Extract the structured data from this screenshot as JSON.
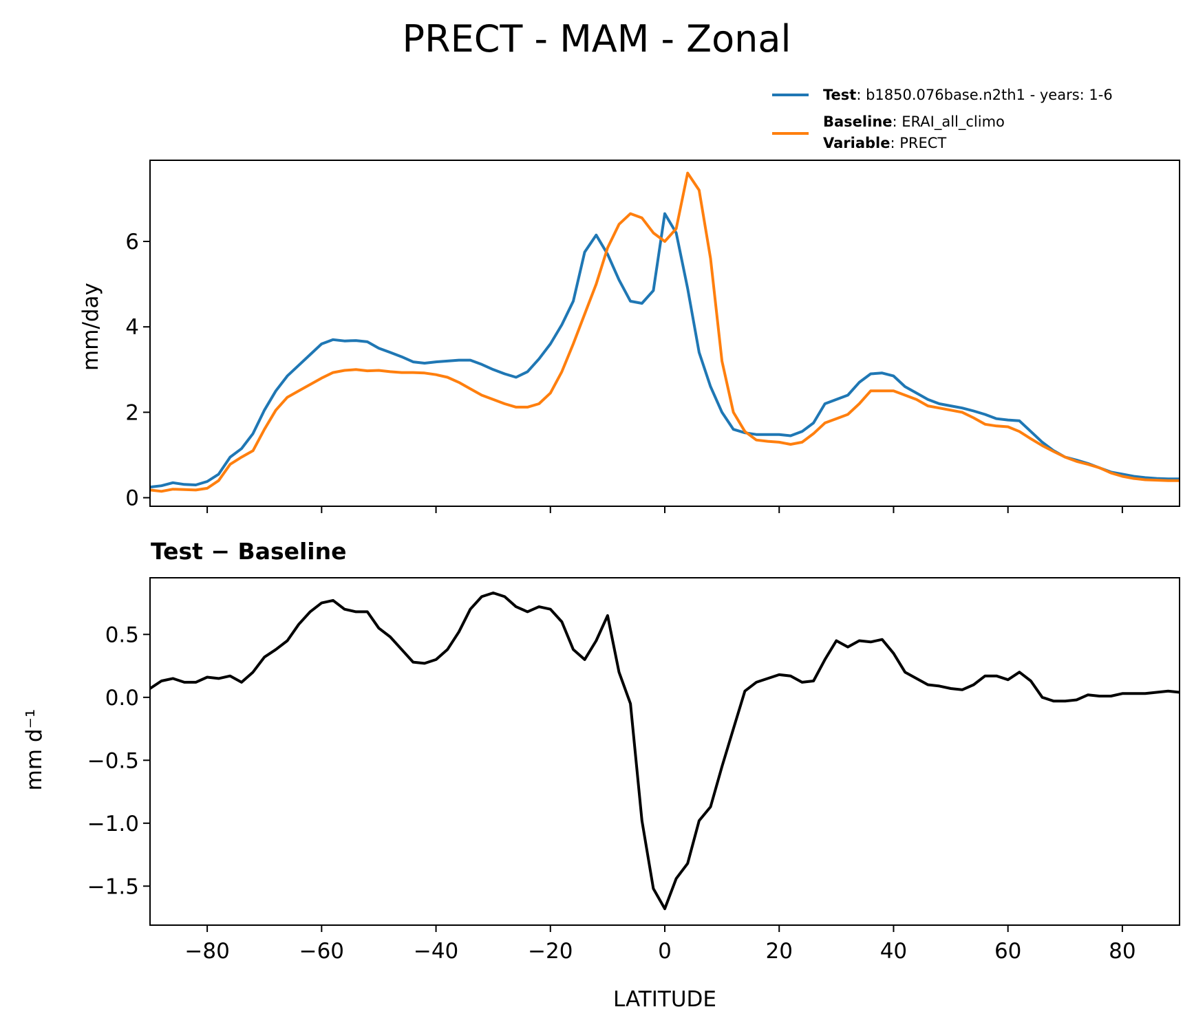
{
  "figure": {
    "title": "PRECT - MAM - Zonal"
  },
  "colors": {
    "test": "#1f77b4",
    "baseline": "#ff7f0e",
    "diff": "#000000"
  },
  "legend": {
    "test_key": "Test",
    "test_value": ": b1850.076base.n2th1 - years: 1-6",
    "baseline_key": "Baseline",
    "baseline_value": ": ERAI_all_climo",
    "variable_key": "Variable",
    "variable_value": ": PRECT"
  },
  "chart_data": [
    {
      "type": "line",
      "title": "",
      "xlabel": "",
      "ylabel": "mm/day",
      "xlim": [
        -90,
        90
      ],
      "ylim": [
        -0.2,
        7.9
      ],
      "yticks": [
        0,
        2,
        4,
        6
      ],
      "ytick_labels": [
        "0",
        "2",
        "4",
        "6"
      ],
      "grid": false,
      "legend_position": "top-right, above axes",
      "x": [
        -90,
        -88,
        -86,
        -84,
        -82,
        -80,
        -78,
        -76,
        -74,
        -72,
        -70,
        -68,
        -66,
        -64,
        -62,
        -60,
        -58,
        -56,
        -54,
        -52,
        -50,
        -48,
        -46,
        -44,
        -42,
        -40,
        -38,
        -36,
        -34,
        -32,
        -30,
        -28,
        -26,
        -24,
        -22,
        -20,
        -18,
        -16,
        -14,
        -12,
        -10,
        -8,
        -6,
        -4,
        -2,
        0,
        2,
        4,
        6,
        8,
        10,
        12,
        14,
        16,
        18,
        20,
        22,
        24,
        26,
        28,
        30,
        32,
        34,
        36,
        38,
        40,
        42,
        44,
        46,
        48,
        50,
        52,
        54,
        56,
        58,
        60,
        62,
        64,
        66,
        68,
        70,
        72,
        74,
        76,
        78,
        80,
        82,
        84,
        86,
        88,
        90
      ],
      "series": [
        {
          "name": "Test",
          "color": "#1f77b4",
          "values": [
            0.25,
            0.28,
            0.35,
            0.31,
            0.3,
            0.38,
            0.55,
            0.95,
            1.15,
            1.5,
            2.05,
            2.5,
            2.85,
            3.1,
            3.35,
            3.6,
            3.7,
            3.67,
            3.68,
            3.65,
            3.5,
            3.4,
            3.3,
            3.18,
            3.15,
            3.18,
            3.2,
            3.22,
            3.22,
            3.12,
            3.0,
            2.9,
            2.82,
            2.95,
            3.25,
            3.6,
            4.05,
            4.6,
            5.75,
            6.15,
            5.7,
            5.1,
            4.6,
            4.55,
            4.85,
            6.65,
            6.2,
            4.9,
            3.4,
            2.6,
            2.0,
            1.6,
            1.52,
            1.48,
            1.48,
            1.48,
            1.45,
            1.55,
            1.75,
            2.2,
            2.3,
            2.4,
            2.7,
            2.9,
            2.92,
            2.85,
            2.6,
            2.45,
            2.3,
            2.2,
            2.15,
            2.1,
            2.03,
            1.95,
            1.85,
            1.82,
            1.8,
            1.55,
            1.3,
            1.1,
            0.95,
            0.88,
            0.8,
            0.7,
            0.6,
            0.55,
            0.5,
            0.47,
            0.45,
            0.44,
            0.44
          ]
        },
        {
          "name": "Baseline",
          "color": "#ff7f0e",
          "values": [
            0.18,
            0.15,
            0.2,
            0.19,
            0.18,
            0.22,
            0.4,
            0.78,
            0.95,
            1.1,
            1.6,
            2.05,
            2.35,
            2.5,
            2.65,
            2.8,
            2.93,
            2.98,
            3.0,
            2.97,
            2.98,
            2.95,
            2.93,
            2.93,
            2.92,
            2.88,
            2.82,
            2.7,
            2.55,
            2.4,
            2.3,
            2.2,
            2.12,
            2.12,
            2.2,
            2.45,
            2.95,
            3.6,
            4.3,
            5.0,
            5.85,
            6.4,
            6.65,
            6.55,
            6.2,
            6.0,
            6.3,
            7.6,
            7.2,
            5.6,
            3.2,
            2.0,
            1.55,
            1.35,
            1.32,
            1.3,
            1.25,
            1.3,
            1.5,
            1.75,
            1.85,
            1.95,
            2.2,
            2.5,
            2.5,
            2.5,
            2.4,
            2.3,
            2.15,
            2.1,
            2.05,
            2.0,
            1.87,
            1.72,
            1.68,
            1.66,
            1.55,
            1.38,
            1.22,
            1.08,
            0.95,
            0.85,
            0.78,
            0.7,
            0.58,
            0.5,
            0.45,
            0.42,
            0.41,
            0.4,
            0.4
          ]
        }
      ]
    },
    {
      "type": "line",
      "title": "Test − Baseline",
      "xlabel": "LATITUDE",
      "ylabel": "mm d⁻¹",
      "xlim": [
        -90,
        90
      ],
      "ylim": [
        -1.81,
        0.95
      ],
      "xticks": [
        -80,
        -60,
        -40,
        -20,
        0,
        20,
        40,
        60,
        80
      ],
      "xtick_labels": [
        "−80",
        "−60",
        "−40",
        "−20",
        "0",
        "20",
        "40",
        "60",
        "80"
      ],
      "yticks": [
        -1.5,
        -1.0,
        -0.5,
        0.0,
        0.5
      ],
      "ytick_labels": [
        "−1.5",
        "−1.0",
        "−0.5",
        "0.0",
        "0.5"
      ],
      "grid": false,
      "x": [
        -90,
        -88,
        -86,
        -84,
        -82,
        -80,
        -78,
        -76,
        -74,
        -72,
        -70,
        -68,
        -66,
        -64,
        -62,
        -60,
        -58,
        -56,
        -54,
        -52,
        -50,
        -48,
        -46,
        -44,
        -42,
        -40,
        -38,
        -36,
        -34,
        -32,
        -30,
        -28,
        -26,
        -24,
        -22,
        -20,
        -18,
        -16,
        -14,
        -12,
        -10,
        -8,
        -6,
        -4,
        -2,
        0,
        2,
        4,
        6,
        8,
        10,
        12,
        14,
        16,
        18,
        20,
        22,
        24,
        26,
        28,
        30,
        32,
        34,
        36,
        38,
        40,
        42,
        44,
        46,
        48,
        50,
        52,
        54,
        56,
        58,
        60,
        62,
        64,
        66,
        68,
        70,
        72,
        74,
        76,
        78,
        80,
        82,
        84,
        86,
        88,
        90
      ],
      "series": [
        {
          "name": "Test − Baseline",
          "color": "#000000",
          "values": [
            0.07,
            0.13,
            0.15,
            0.12,
            0.12,
            0.16,
            0.15,
            0.17,
            0.12,
            0.2,
            0.32,
            0.38,
            0.45,
            0.58,
            0.68,
            0.75,
            0.77,
            0.7,
            0.68,
            0.68,
            0.55,
            0.48,
            0.38,
            0.28,
            0.27,
            0.3,
            0.38,
            0.52,
            0.7,
            0.8,
            0.83,
            0.8,
            0.72,
            0.68,
            0.72,
            0.7,
            0.6,
            0.38,
            0.3,
            0.45,
            0.65,
            0.2,
            -0.05,
            -0.98,
            -1.52,
            -1.68,
            -1.44,
            -1.32,
            -0.98,
            -0.87,
            -0.55,
            -0.25,
            0.05,
            0.12,
            0.15,
            0.18,
            0.17,
            0.12,
            0.13,
            0.3,
            0.45,
            0.4,
            0.45,
            0.44,
            0.46,
            0.35,
            0.2,
            0.15,
            0.1,
            0.09,
            0.07,
            0.06,
            0.1,
            0.17,
            0.17,
            0.14,
            0.2,
            0.13,
            0.0,
            -0.03,
            -0.03,
            -0.02,
            0.02,
            0.01,
            0.01,
            0.03,
            0.03,
            0.03,
            0.04,
            0.05,
            0.04
          ]
        }
      ]
    }
  ]
}
